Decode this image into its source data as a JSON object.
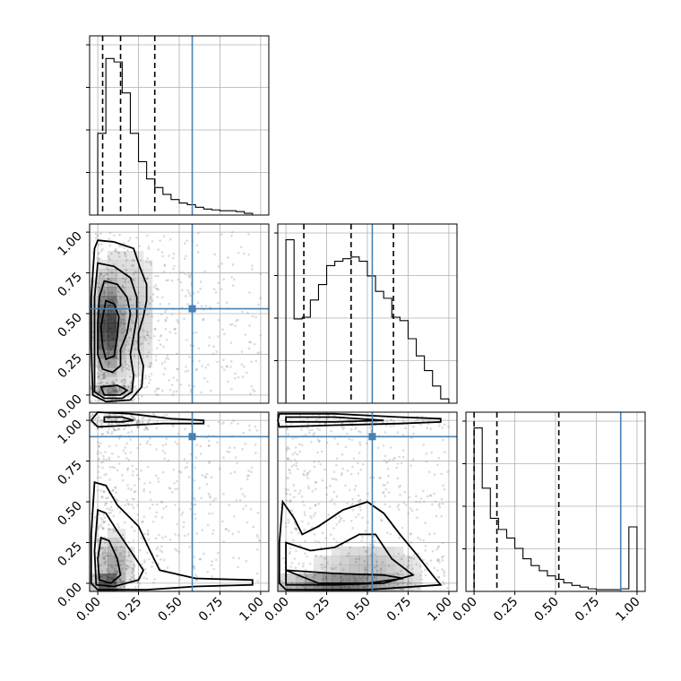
{
  "chart_data": {
    "type": "corner",
    "truths": [
      0.58,
      0.53,
      0.9
    ],
    "quantile_levels": [
      0.16,
      0.5,
      0.84
    ],
    "tick_values": [
      0.0,
      0.25,
      0.5,
      0.75,
      1.0
    ],
    "tick_labels": [
      "0.00",
      "0.25",
      "0.50",
      "0.75",
      "1.00"
    ],
    "grid": true,
    "colors": {
      "truth": "#4682b4",
      "hist": "#000000",
      "points": "#808080"
    },
    "histograms": [
      {
        "param": 0,
        "range": [
          -0.05,
          1.05
        ],
        "bin_edges": [
          -0.05,
          0.0,
          0.05,
          0.1,
          0.15,
          0.2,
          0.25,
          0.3,
          0.35,
          0.4,
          0.45,
          0.5,
          0.55,
          0.6,
          0.65,
          0.7,
          0.75,
          0.8,
          0.85,
          0.9,
          0.95,
          1.0,
          1.05
        ],
        "counts": [
          0,
          95,
          182,
          178,
          142,
          95,
          62,
          42,
          32,
          24,
          18,
          14,
          12,
          9,
          7,
          6,
          5,
          5,
          4,
          2,
          0,
          0
        ],
        "quantiles": [
          0.03,
          0.14,
          0.35
        ],
        "ylim": [
          0,
          200
        ]
      },
      {
        "param": 1,
        "range": [
          -0.05,
          1.05
        ],
        "bin_edges": [
          -0.05,
          0.0,
          0.05,
          0.1,
          0.15,
          0.2,
          0.25,
          0.3,
          0.35,
          0.4,
          0.45,
          0.5,
          0.55,
          0.6,
          0.65,
          0.7,
          0.75,
          0.8,
          0.85,
          0.9,
          0.95,
          1.0,
          1.05
        ],
        "counts": [
          0,
          190,
          98,
          100,
          120,
          138,
          160,
          165,
          168,
          170,
          165,
          148,
          130,
          122,
          100,
          96,
          75,
          55,
          38,
          20,
          5,
          0
        ],
        "quantiles": [
          0.11,
          0.4,
          0.66
        ],
        "ylim": [
          0,
          200
        ]
      },
      {
        "param": 2,
        "range": [
          -0.05,
          1.05
        ],
        "bin_edges": [
          -0.05,
          0.0,
          0.05,
          0.1,
          0.15,
          0.2,
          0.25,
          0.3,
          0.35,
          0.4,
          0.45,
          0.5,
          0.55,
          0.6,
          0.65,
          0.7,
          0.75,
          0.8,
          0.85,
          0.9,
          0.95,
          1.0,
          1.05
        ],
        "counts": [
          0,
          190,
          120,
          85,
          72,
          62,
          50,
          38,
          30,
          24,
          18,
          14,
          10,
          7,
          5,
          3,
          2,
          2,
          2,
          3,
          75,
          0
        ],
        "quantiles": [
          0.0,
          0.14,
          0.52
        ],
        "ylim": [
          0,
          200
        ]
      }
    ],
    "panels_2d": [
      {
        "x_param": 0,
        "y_param": 1,
        "truth": [
          0.58,
          0.53
        ],
        "density_blobs": [
          {
            "x": 0.06,
            "y": 0.42,
            "sx": 0.05,
            "sy": 0.18,
            "w": 1.0
          },
          {
            "x": 0.08,
            "y": 0.02,
            "sx": 0.06,
            "sy": 0.02,
            "w": 0.6
          },
          {
            "x": 0.2,
            "y": 0.5,
            "sx": 0.12,
            "sy": 0.3,
            "w": 0.3
          }
        ],
        "contours": [
          [
            [
              0.0,
              0.95
            ],
            [
              0.1,
              0.94
            ],
            [
              0.22,
              0.9
            ],
            [
              0.26,
              0.78
            ],
            [
              0.3,
              0.68
            ],
            [
              0.3,
              0.58
            ],
            [
              0.28,
              0.48
            ],
            [
              0.25,
              0.38
            ],
            [
              0.25,
              0.28
            ],
            [
              0.28,
              0.18
            ],
            [
              0.27,
              0.05
            ],
            [
              0.2,
              -0.03
            ],
            [
              0.05,
              -0.04
            ],
            [
              -0.03,
              0.0
            ],
            [
              -0.04,
              0.3
            ],
            [
              -0.04,
              0.6
            ],
            [
              -0.02,
              0.9
            ],
            [
              0.0,
              0.95
            ]
          ],
          [
            [
              0.0,
              0.81
            ],
            [
              0.1,
              0.79
            ],
            [
              0.2,
              0.72
            ],
            [
              0.24,
              0.6
            ],
            [
              0.24,
              0.48
            ],
            [
              0.22,
              0.36
            ],
            [
              0.2,
              0.25
            ],
            [
              0.22,
              0.12
            ],
            [
              0.21,
              0.02
            ],
            [
              0.15,
              -0.02
            ],
            [
              0.04,
              -0.02
            ],
            [
              -0.02,
              0.02
            ],
            [
              -0.02,
              0.3
            ],
            [
              -0.02,
              0.6
            ],
            [
              0.0,
              0.81
            ]
          ],
          [
            [
              0.04,
              0.7
            ],
            [
              0.12,
              0.68
            ],
            [
              0.18,
              0.6
            ],
            [
              0.2,
              0.5
            ],
            [
              0.18,
              0.38
            ],
            [
              0.14,
              0.28
            ],
            [
              0.14,
              0.18
            ],
            [
              0.09,
              0.14
            ],
            [
              0.03,
              0.16
            ],
            [
              0.0,
              0.25
            ],
            [
              0.0,
              0.45
            ],
            [
              0.01,
              0.6
            ],
            [
              0.04,
              0.7
            ]
          ],
          [
            [
              0.05,
              0.58
            ],
            [
              0.1,
              0.56
            ],
            [
              0.13,
              0.48
            ],
            [
              0.12,
              0.36
            ],
            [
              0.1,
              0.24
            ],
            [
              0.05,
              0.22
            ],
            [
              0.03,
              0.3
            ],
            [
              0.02,
              0.42
            ],
            [
              0.05,
              0.58
            ]
          ],
          [
            [
              0.02,
              0.05
            ],
            [
              0.12,
              0.06
            ],
            [
              0.18,
              0.03
            ],
            [
              0.14,
              0.0
            ],
            [
              0.04,
              0.0
            ],
            [
              0.02,
              0.05
            ]
          ]
        ]
      },
      {
        "x_param": 0,
        "y_param": 2,
        "truth": [
          0.58,
          0.9
        ],
        "density_blobs": [
          {
            "x": 0.05,
            "y": 0.0,
            "sx": 0.05,
            "sy": 0.03,
            "w": 1.0
          },
          {
            "x": 0.1,
            "y": 0.12,
            "sx": 0.07,
            "sy": 0.12,
            "w": 0.5
          },
          {
            "x": 0.1,
            "y": 1.0,
            "sx": 0.08,
            "sy": 0.015,
            "w": 0.4
          }
        ],
        "contours": [
          [
            [
              0.0,
              1.05
            ],
            [
              0.2,
              1.04
            ],
            [
              0.45,
              1.01
            ],
            [
              0.65,
              1.0
            ],
            [
              0.65,
              0.98
            ],
            [
              0.4,
              0.98
            ],
            [
              0.2,
              0.97
            ],
            [
              0.0,
              0.96
            ],
            [
              -0.04,
              1.0
            ],
            [
              0.0,
              1.05
            ]
          ],
          [
            [
              0.04,
              1.02
            ],
            [
              0.15,
              1.02
            ],
            [
              0.22,
              1.0
            ],
            [
              0.15,
              0.99
            ],
            [
              0.04,
              0.99
            ],
            [
              0.04,
              1.02
            ]
          ],
          [
            [
              -0.02,
              0.62
            ],
            [
              0.05,
              0.6
            ],
            [
              0.12,
              0.48
            ],
            [
              0.25,
              0.35
            ],
            [
              0.32,
              0.2
            ],
            [
              0.38,
              0.08
            ],
            [
              0.6,
              0.03
            ],
            [
              0.95,
              0.02
            ],
            [
              0.95,
              -0.01
            ],
            [
              0.6,
              -0.02
            ],
            [
              0.3,
              -0.04
            ],
            [
              0.0,
              -0.04
            ],
            [
              -0.04,
              0.0
            ],
            [
              -0.04,
              0.3
            ],
            [
              -0.02,
              0.62
            ]
          ],
          [
            [
              0.0,
              0.45
            ],
            [
              0.05,
              0.43
            ],
            [
              0.12,
              0.32
            ],
            [
              0.2,
              0.2
            ],
            [
              0.28,
              0.08
            ],
            [
              0.25,
              0.02
            ],
            [
              0.1,
              -0.02
            ],
            [
              -0.01,
              -0.01
            ],
            [
              -0.02,
              0.2
            ],
            [
              0.0,
              0.45
            ]
          ],
          [
            [
              0.02,
              0.28
            ],
            [
              0.07,
              0.26
            ],
            [
              0.12,
              0.15
            ],
            [
              0.14,
              0.05
            ],
            [
              0.08,
              0.0
            ],
            [
              0.01,
              0.02
            ],
            [
              0.0,
              0.15
            ],
            [
              0.02,
              0.28
            ]
          ]
        ]
      },
      {
        "x_param": 1,
        "y_param": 2,
        "truth": [
          0.53,
          0.9
        ],
        "density_blobs": [
          {
            "x": 0.3,
            "y": 0.0,
            "sx": 0.25,
            "sy": 0.025,
            "w": 1.0
          },
          {
            "x": 0.5,
            "y": 0.1,
            "sx": 0.22,
            "sy": 0.1,
            "w": 0.35
          },
          {
            "x": 0.3,
            "y": 1.0,
            "sx": 0.3,
            "sy": 0.015,
            "w": 0.35
          }
        ],
        "contours": [
          [
            [
              -0.04,
              1.04
            ],
            [
              0.3,
              1.04
            ],
            [
              0.7,
              1.02
            ],
            [
              0.95,
              1.01
            ],
            [
              0.95,
              0.99
            ],
            [
              0.7,
              0.98
            ],
            [
              0.3,
              0.97
            ],
            [
              -0.04,
              0.96
            ],
            [
              -0.05,
              1.0
            ],
            [
              -0.04,
              1.04
            ]
          ],
          [
            [
              0.0,
              1.02
            ],
            [
              0.3,
              1.02
            ],
            [
              0.6,
              1.0
            ],
            [
              0.3,
              0.99
            ],
            [
              0.0,
              0.99
            ],
            [
              0.0,
              1.02
            ]
          ],
          [
            [
              -0.02,
              0.5
            ],
            [
              0.05,
              0.4
            ],
            [
              0.1,
              0.3
            ],
            [
              0.2,
              0.35
            ],
            [
              0.35,
              0.45
            ],
            [
              0.5,
              0.5
            ],
            [
              0.6,
              0.43
            ],
            [
              0.7,
              0.3
            ],
            [
              0.8,
              0.18
            ],
            [
              0.9,
              0.05
            ],
            [
              0.95,
              -0.01
            ],
            [
              0.5,
              -0.04
            ],
            [
              0.0,
              -0.04
            ],
            [
              -0.04,
              0.0
            ],
            [
              -0.04,
              0.25
            ],
            [
              -0.02,
              0.5
            ]
          ],
          [
            [
              0.0,
              0.25
            ],
            [
              0.15,
              0.2
            ],
            [
              0.3,
              0.22
            ],
            [
              0.45,
              0.3
            ],
            [
              0.55,
              0.3
            ],
            [
              0.65,
              0.15
            ],
            [
              0.78,
              0.05
            ],
            [
              0.6,
              0.0
            ],
            [
              0.3,
              -0.01
            ],
            [
              0.0,
              -0.01
            ],
            [
              0.0,
              0.25
            ]
          ],
          [
            [
              0.0,
              0.08
            ],
            [
              0.3,
              0.06
            ],
            [
              0.6,
              0.05
            ],
            [
              0.72,
              0.03
            ],
            [
              0.5,
              0.0
            ],
            [
              0.2,
              0.0
            ],
            [
              0.0,
              0.08
            ]
          ]
        ]
      }
    ]
  }
}
